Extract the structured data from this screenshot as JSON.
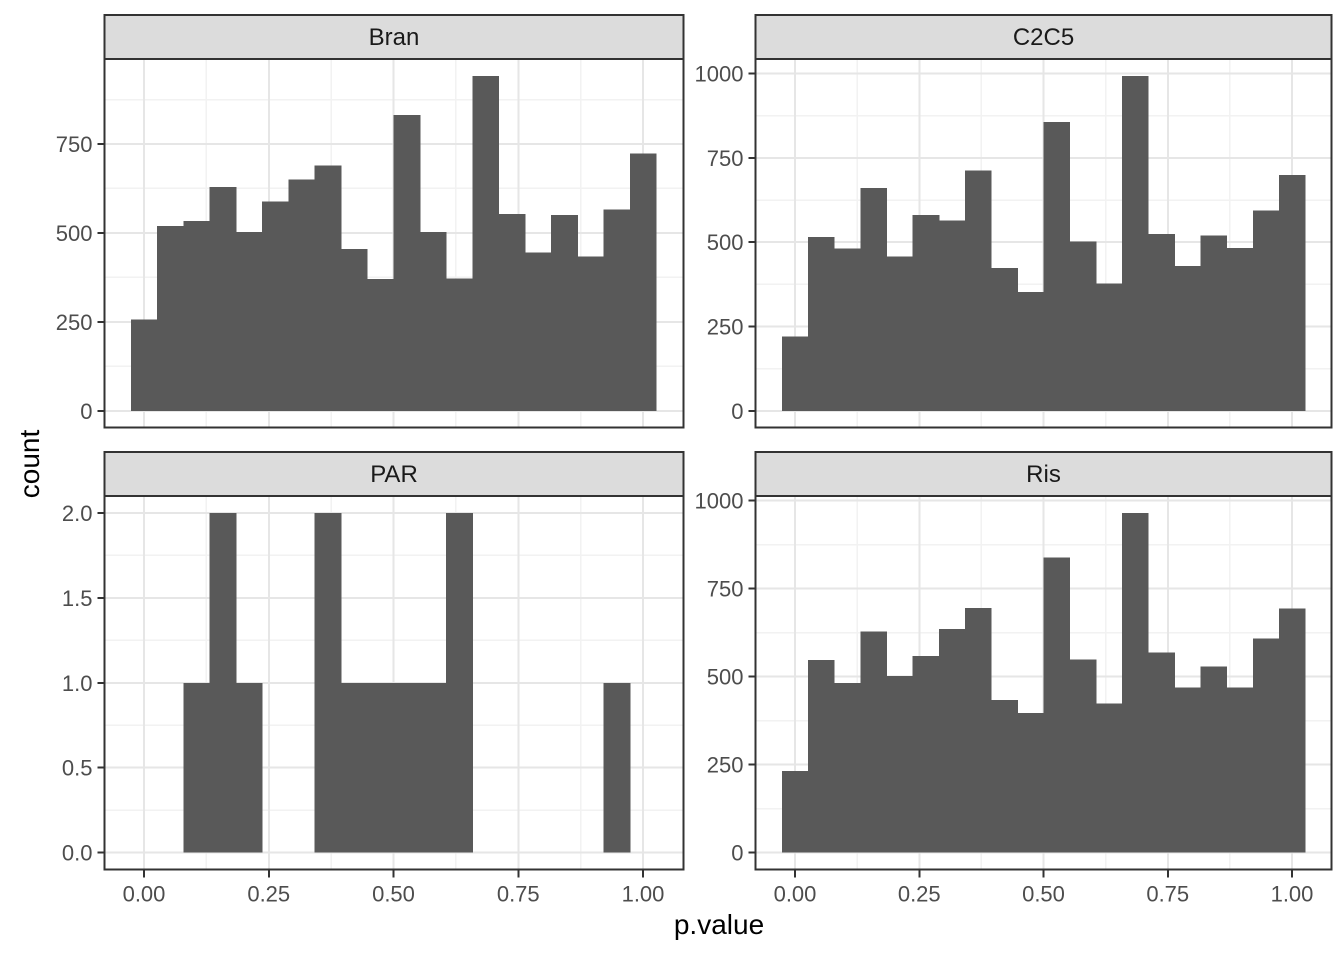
{
  "figure": {
    "x_axis_title": "p.value",
    "y_axis_title": "count"
  },
  "colors": {
    "bar_fill": "#595959",
    "strip_fill": "#DCDCDC",
    "panel_border": "#333333",
    "grid_major": "#E6E6E6",
    "grid_minor": "#F2F2F2",
    "tick_mark": "#333333",
    "tick_text": "#4D4D4D",
    "strip_text": "#1A1A1A",
    "panel_bg": "#FFFFFF"
  },
  "chart_data": [
    {
      "type": "bar",
      "facet": "Bran",
      "xlabel": "p.value",
      "ylabel": "count",
      "bin_start": -0.0263,
      "bin_width": 0.05263,
      "values": [
        257,
        520,
        533,
        629,
        503,
        588,
        650,
        690,
        455,
        370,
        831,
        503,
        372,
        942,
        553,
        445,
        550,
        434,
        566,
        723
      ],
      "ylim": [
        0,
        942
      ],
      "yticks": [
        0,
        250,
        500,
        750
      ],
      "ytick_labels": [
        "0",
        "250",
        "500",
        "750"
      ],
      "xticks": [
        0,
        0.25,
        0.5,
        0.75,
        1
      ],
      "xtick_labels": [
        "0.00",
        "0.25",
        "0.50",
        "0.75",
        "1.00"
      ],
      "grid": true,
      "legend": "none"
    },
    {
      "type": "bar",
      "facet": "C2C5",
      "xlabel": "p.value",
      "ylabel": "count",
      "bin_start": -0.0263,
      "bin_width": 0.05263,
      "values": [
        220,
        515,
        482,
        661,
        457,
        581,
        565,
        713,
        424,
        353,
        857,
        502,
        378,
        994,
        524,
        429,
        520,
        483,
        594,
        700
      ],
      "ylim": [
        0,
        994
      ],
      "yticks": [
        0,
        250,
        500,
        750,
        1000
      ],
      "ytick_labels": [
        "0",
        "250",
        "500",
        "750",
        "1000"
      ],
      "xticks": [
        0,
        0.25,
        0.5,
        0.75,
        1
      ],
      "xtick_labels": [
        "0.00",
        "0.25",
        "0.50",
        "0.75",
        "1.00"
      ],
      "grid": true,
      "legend": "none"
    },
    {
      "type": "bar",
      "facet": "PAR",
      "xlabel": "p.value",
      "ylabel": "count",
      "bin_start": -0.0263,
      "bin_width": 0.05263,
      "values": [
        0,
        0,
        1,
        2,
        1,
        0,
        0,
        2,
        1,
        1,
        1,
        1,
        2,
        0,
        0,
        0,
        0,
        0,
        1,
        0
      ],
      "ylim": [
        0,
        2
      ],
      "yticks": [
        0,
        0.5,
        1,
        1.5,
        2
      ],
      "ytick_labels": [
        "0.0",
        "0.5",
        "1.0",
        "1.5",
        "2.0"
      ],
      "xticks": [
        0,
        0.25,
        0.5,
        0.75,
        1
      ],
      "xtick_labels": [
        "0.00",
        "0.25",
        "0.50",
        "0.75",
        "1.00"
      ],
      "grid": true,
      "legend": "none"
    },
    {
      "type": "bar",
      "facet": "Ris",
      "xlabel": "p.value",
      "ylabel": "count",
      "bin_start": -0.0263,
      "bin_width": 0.05263,
      "values": [
        232,
        547,
        482,
        628,
        501,
        558,
        635,
        695,
        434,
        396,
        838,
        549,
        424,
        965,
        569,
        469,
        528,
        469,
        608,
        693
      ],
      "ylim": [
        0,
        965
      ],
      "yticks": [
        0,
        250,
        500,
        750,
        1000
      ],
      "ytick_labels": [
        "0",
        "250",
        "500",
        "750",
        "1000"
      ],
      "xticks": [
        0,
        0.25,
        0.5,
        0.75,
        1
      ],
      "xtick_labels": [
        "0.00",
        "0.25",
        "0.50",
        "0.75",
        "1.00"
      ],
      "grid": true,
      "legend": "none"
    }
  ]
}
